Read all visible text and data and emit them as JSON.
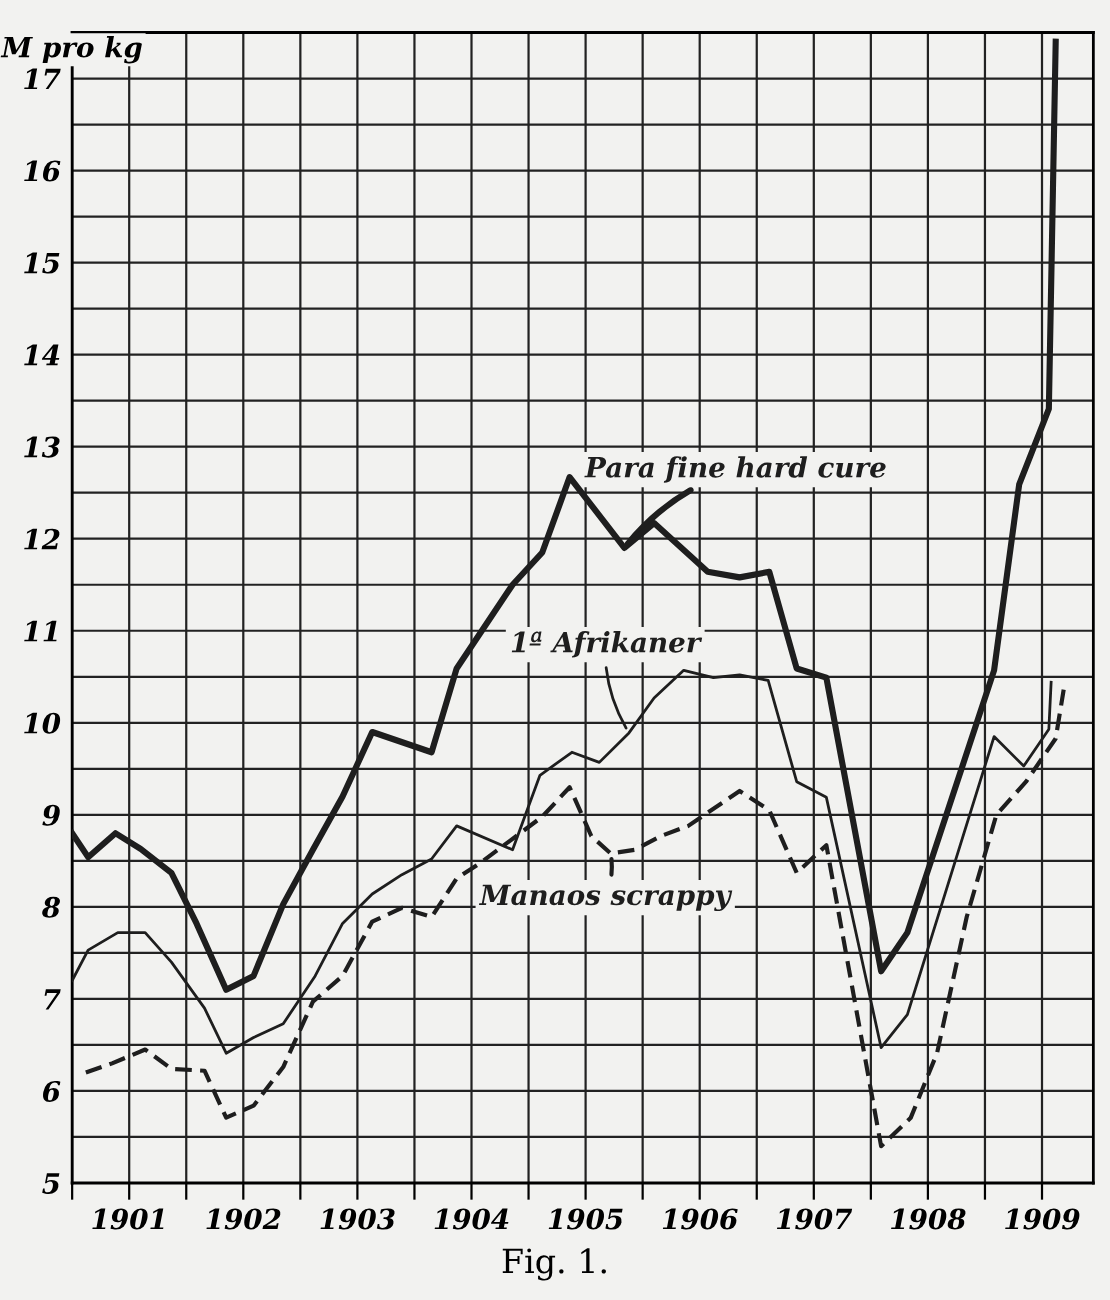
{
  "chart_data": {
    "type": "line",
    "ylabel": "M pro kg",
    "annotations": [
      "Fig. 1."
    ],
    "xlim": [
      1901,
      1909.95
    ],
    "xticks": [
      {
        "value": 1901,
        "label": null
      },
      {
        "value": 1901.5,
        "label": "1901"
      },
      {
        "value": 1902,
        "label": null
      },
      {
        "value": 1902.5,
        "label": "1902"
      },
      {
        "value": 1903,
        "label": null
      },
      {
        "value": 1903.5,
        "label": "1903"
      },
      {
        "value": 1904,
        "label": null
      },
      {
        "value": 1904.5,
        "label": "1904"
      },
      {
        "value": 1905,
        "label": null
      },
      {
        "value": 1905.5,
        "label": "1905"
      },
      {
        "value": 1906,
        "label": null
      },
      {
        "value": 1906.5,
        "label": "1906"
      },
      {
        "value": 1907,
        "label": null
      },
      {
        "value": 1907.5,
        "label": "1907"
      },
      {
        "value": 1908,
        "label": null
      },
      {
        "value": 1908.5,
        "label": "1908"
      },
      {
        "value": 1909,
        "label": null
      },
      {
        "value": 1909.5,
        "label": "1909"
      }
    ],
    "ylim": [
      5,
      17.5
    ],
    "yticks": [
      5,
      {
        "value": 5.5,
        "label": null
      },
      6,
      {
        "value": 6.5,
        "label": null
      },
      7,
      {
        "value": 7.5,
        "label": null
      },
      8,
      {
        "value": 8.5,
        "label": null
      },
      9,
      {
        "value": 9.5,
        "label": null
      },
      10,
      {
        "value": 10.5,
        "label": null
      },
      11,
      {
        "value": 11.5,
        "label": null
      },
      12,
      {
        "value": 12.5,
        "label": null
      },
      13,
      {
        "value": 13.5,
        "label": null
      },
      14,
      {
        "value": 14.5,
        "label": null
      },
      15,
      {
        "value": 15.5,
        "label": null
      },
      16,
      {
        "value": 16.5,
        "label": null
      },
      17
    ],
    "grid": true,
    "series": [
      {
        "name": "Para fine hard cure",
        "color": "#1e1e1e",
        "line_style": "solid",
        "x": [
          1901.0,
          1901.14,
          1901.38,
          1901.6,
          1901.87,
          1902.09,
          1902.35,
          1902.59,
          1902.85,
          1903.11,
          1903.37,
          1903.63,
          1904.15,
          1904.37,
          1904.86,
          1905.12,
          1905.36,
          1905.84,
          1906.1,
          1906.57,
          1906.85,
          1907.11,
          1907.35,
          1907.61,
          1908.09,
          1908.32,
          1909.08,
          1909.3,
          1909.56,
          1909.62
        ],
        "values": [
          8.8,
          8.54,
          8.8,
          8.63,
          8.37,
          7.82,
          7.1,
          7.25,
          8.03,
          8.62,
          9.2,
          9.9,
          9.68,
          10.59,
          11.5,
          11.85,
          12.67,
          11.9,
          12.17,
          11.64,
          11.58,
          11.64,
          10.59,
          10.49,
          7.3,
          7.72,
          10.57,
          12.59,
          13.41,
          17.4
        ]
      },
      {
        "name": "1ª Afrikaner",
        "color": "#1e1e1e",
        "line_style": "solid",
        "x": [
          1901.0,
          1901.14,
          1901.4,
          1901.64,
          1901.87,
          1902.16,
          1902.35,
          1902.59,
          1902.85,
          1903.13,
          1903.37,
          1903.63,
          1903.89,
          1904.15,
          1904.37,
          1904.86,
          1905.1,
          1905.38,
          1905.62,
          1905.88,
          1906.1,
          1906.36,
          1906.62,
          1906.85,
          1907.1,
          1907.35,
          1907.61,
          1908.09,
          1908.32,
          1909.08,
          1909.34,
          1909.56,
          1909.58
        ],
        "values": [
          7.2,
          7.53,
          7.72,
          7.72,
          7.4,
          6.9,
          6.41,
          6.58,
          6.73,
          7.25,
          7.82,
          8.14,
          8.35,
          8.52,
          8.88,
          8.62,
          9.43,
          9.68,
          9.57,
          9.89,
          10.27,
          10.57,
          10.49,
          10.52,
          10.46,
          9.36,
          9.19,
          6.47,
          6.83,
          9.85,
          9.53,
          9.93,
          10.44
        ]
      },
      {
        "name": "Manaos scrappy",
        "color": "#1e1e1e",
        "line_style": "dashed",
        "x": [
          1901.12,
          1901.35,
          1901.64,
          1901.87,
          1902.16,
          1902.35,
          1902.59,
          1902.85,
          1903.11,
          1903.37,
          1903.63,
          1903.89,
          1904.15,
          1904.37,
          1904.58,
          1905.12,
          1905.36,
          1905.55,
          1905.72,
          1905.93,
          1906.16,
          1906.4,
          1906.85,
          1907.11,
          1907.35,
          1907.61,
          1908.09,
          1908.35,
          1908.58,
          1908.84,
          1909.1,
          1909.36,
          1909.62,
          1909.69
        ],
        "values": [
          6.2,
          6.3,
          6.45,
          6.24,
          6.22,
          5.71,
          5.84,
          6.26,
          6.97,
          7.25,
          7.84,
          7.99,
          7.89,
          8.31,
          8.48,
          8.98,
          9.3,
          8.77,
          8.58,
          8.62,
          8.77,
          8.88,
          9.26,
          9.05,
          8.37,
          8.67,
          5.4,
          5.71,
          6.41,
          7.89,
          9.0,
          9.36,
          9.83,
          10.36
        ]
      }
    ]
  }
}
